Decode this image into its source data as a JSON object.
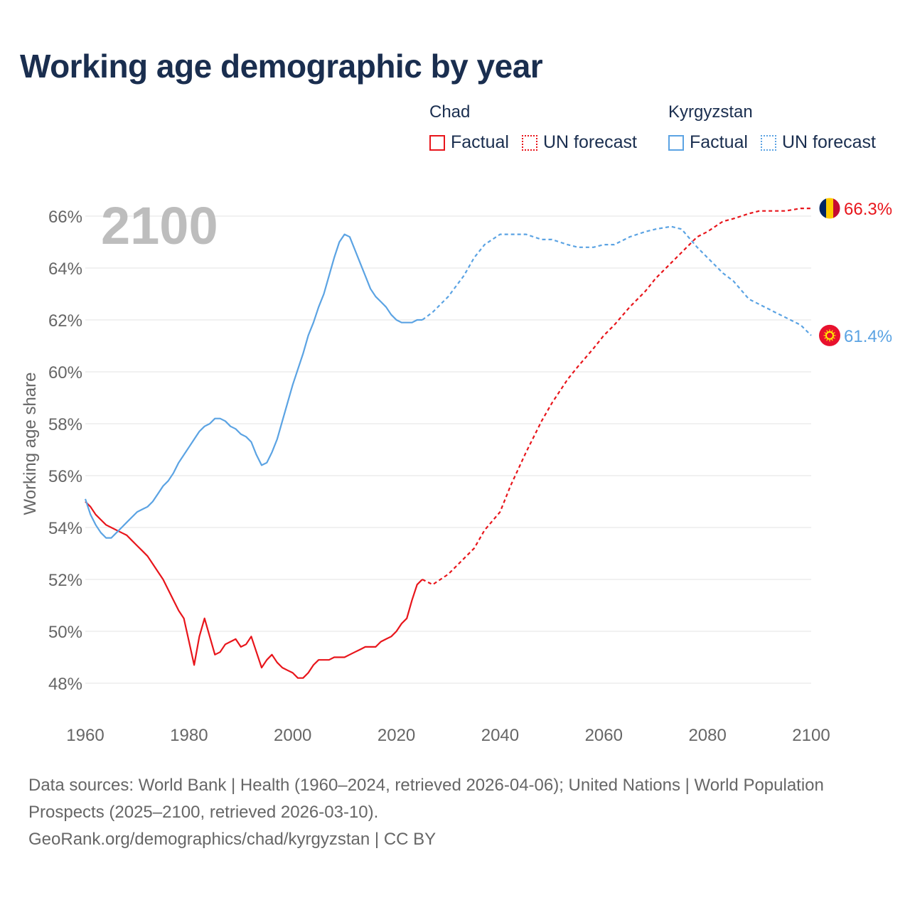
{
  "header": {
    "title": "Working age demographic by year"
  },
  "legend": {
    "groups": [
      {
        "name": "Chad",
        "factual_label": "Factual",
        "forecast_label": "UN forecast",
        "color": "#e8151b"
      },
      {
        "name": "Kyrgyzstan",
        "factual_label": "Factual",
        "forecast_label": "UN forecast",
        "color": "#5ba3e3"
      }
    ]
  },
  "chart_data": {
    "type": "line",
    "year_label": "2100",
    "ylabel": "Working age share",
    "xlim": [
      1960,
      2100
    ],
    "ylim": [
      47,
      67
    ],
    "xticks": [
      1960,
      1980,
      2000,
      2020,
      2040,
      2060,
      2080,
      2100
    ],
    "yticks": [
      48,
      50,
      52,
      54,
      56,
      58,
      60,
      62,
      64,
      66
    ],
    "ytick_labels": [
      "48%",
      "50%",
      "52%",
      "54%",
      "56%",
      "58%",
      "60%",
      "62%",
      "64%",
      "66%"
    ],
    "series": [
      {
        "name": "Chad",
        "color": "#e8151b",
        "end_label": "66.3%",
        "flag_icon": "chad-flag-icon",
        "factual": {
          "x": [
            1960,
            1961,
            1962,
            1963,
            1964,
            1965,
            1966,
            1967,
            1968,
            1969,
            1970,
            1971,
            1972,
            1973,
            1974,
            1975,
            1976,
            1977,
            1978,
            1979,
            1980,
            1981,
            1982,
            1983,
            1984,
            1985,
            1986,
            1987,
            1988,
            1989,
            1990,
            1991,
            1992,
            1993,
            1994,
            1995,
            1996,
            1997,
            1998,
            1999,
            2000,
            2001,
            2002,
            2003,
            2004,
            2005,
            2006,
            2007,
            2008,
            2009,
            2010,
            2011,
            2012,
            2013,
            2014,
            2015,
            2016,
            2017,
            2018,
            2019,
            2020,
            2021,
            2022,
            2023,
            2024,
            2025
          ],
          "values": [
            55.0,
            54.8,
            54.5,
            54.3,
            54.1,
            54.0,
            53.9,
            53.8,
            53.7,
            53.5,
            53.3,
            53.1,
            52.9,
            52.6,
            52.3,
            52.0,
            51.6,
            51.2,
            50.8,
            50.5,
            49.6,
            48.7,
            49.8,
            50.5,
            49.8,
            49.1,
            49.2,
            49.5,
            49.6,
            49.7,
            49.4,
            49.5,
            49.8,
            49.2,
            48.6,
            48.9,
            49.1,
            48.8,
            48.6,
            48.5,
            48.4,
            48.2,
            48.2,
            48.4,
            48.7,
            48.9,
            48.9,
            48.9,
            49.0,
            49.0,
            49.0,
            49.1,
            49.2,
            49.3,
            49.4,
            49.4,
            49.4,
            49.6,
            49.7,
            49.8,
            50.0,
            50.3,
            50.5,
            51.2,
            51.8,
            52.0
          ]
        },
        "forecast": {
          "x": [
            2025,
            2027,
            2030,
            2033,
            2035,
            2037,
            2040,
            2042,
            2045,
            2048,
            2050,
            2053,
            2055,
            2058,
            2060,
            2062,
            2065,
            2068,
            2070,
            2073,
            2075,
            2078,
            2080,
            2083,
            2085,
            2088,
            2090,
            2093,
            2095,
            2098,
            2100
          ],
          "values": [
            52.0,
            51.8,
            52.2,
            52.8,
            53.2,
            53.9,
            54.6,
            55.6,
            56.9,
            58.1,
            58.8,
            59.7,
            60.2,
            60.9,
            61.4,
            61.8,
            62.5,
            63.1,
            63.6,
            64.2,
            64.6,
            65.2,
            65.4,
            65.8,
            65.9,
            66.1,
            66.2,
            66.2,
            66.2,
            66.3,
            66.3
          ]
        }
      },
      {
        "name": "Kyrgyzstan",
        "color": "#5ba3e3",
        "end_label": "61.4%",
        "flag_icon": "kyrgyzstan-flag-icon",
        "factual": {
          "x": [
            1960,
            1961,
            1962,
            1963,
            1964,
            1965,
            1966,
            1967,
            1968,
            1969,
            1970,
            1971,
            1972,
            1973,
            1974,
            1975,
            1976,
            1977,
            1978,
            1979,
            1980,
            1981,
            1982,
            1983,
            1984,
            1985,
            1986,
            1987,
            1988,
            1989,
            1990,
            1991,
            1992,
            1993,
            1994,
            1995,
            1996,
            1997,
            1998,
            1999,
            2000,
            2001,
            2002,
            2003,
            2004,
            2005,
            2006,
            2007,
            2008,
            2009,
            2010,
            2011,
            2012,
            2013,
            2014,
            2015,
            2016,
            2017,
            2018,
            2019,
            2020,
            2021,
            2022,
            2023,
            2024,
            2025
          ],
          "values": [
            55.1,
            54.5,
            54.1,
            53.8,
            53.6,
            53.6,
            53.8,
            54.0,
            54.2,
            54.4,
            54.6,
            54.7,
            54.8,
            55.0,
            55.3,
            55.6,
            55.8,
            56.1,
            56.5,
            56.8,
            57.1,
            57.4,
            57.7,
            57.9,
            58.0,
            58.2,
            58.2,
            58.1,
            57.9,
            57.8,
            57.6,
            57.5,
            57.3,
            56.8,
            56.4,
            56.5,
            56.9,
            57.4,
            58.1,
            58.8,
            59.5,
            60.1,
            60.7,
            61.4,
            61.9,
            62.5,
            63.0,
            63.7,
            64.4,
            65.0,
            65.3,
            65.2,
            64.7,
            64.2,
            63.7,
            63.2,
            62.9,
            62.7,
            62.5,
            62.2,
            62.0,
            61.9,
            61.9,
            61.9,
            62.0,
            62.0
          ]
        },
        "forecast": {
          "x": [
            2025,
            2027,
            2030,
            2033,
            2035,
            2037,
            2040,
            2042,
            2045,
            2048,
            2050,
            2053,
            2055,
            2058,
            2060,
            2062,
            2065,
            2068,
            2070,
            2073,
            2075,
            2078,
            2080,
            2083,
            2085,
            2088,
            2090,
            2093,
            2095,
            2098,
            2100
          ],
          "values": [
            62.0,
            62.3,
            62.9,
            63.7,
            64.4,
            64.9,
            65.3,
            65.3,
            65.3,
            65.1,
            65.1,
            64.9,
            64.8,
            64.8,
            64.9,
            64.9,
            65.2,
            65.4,
            65.5,
            65.6,
            65.5,
            64.8,
            64.4,
            63.8,
            63.5,
            62.8,
            62.6,
            62.3,
            62.1,
            61.8,
            61.4
          ]
        }
      }
    ]
  },
  "footer": {
    "sources": "Data sources: World Bank | Health (1960–2024, retrieved 2026-04-06); United Nations | World Population Prospects (2025–2100, retrieved 2026-03-10).",
    "link": "GeoRank.org/demographics/chad/kyrgyzstan | CC BY"
  }
}
